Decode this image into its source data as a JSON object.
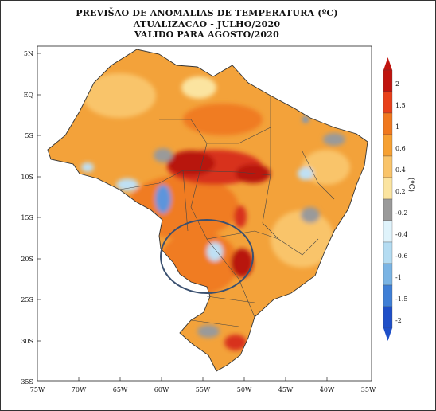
{
  "title": {
    "line1": "PREVIŠAO DE ANOMALIAS DE TEMPERATURA (ºC)",
    "line2": "ATUALIZACAO - JULHO/2020",
    "line3": "VALIDO PARA AGOSTO/2020"
  },
  "axes": {
    "lat_labels": [
      "5N",
      "EQ",
      "5S",
      "10S",
      "15S",
      "20S",
      "25S",
      "30S",
      "35S"
    ],
    "lon_labels": [
      "75W",
      "70W",
      "65W",
      "60W",
      "55W",
      "50W",
      "45W",
      "40W",
      "35W"
    ]
  },
  "colorbar": {
    "unit": "(ºC)",
    "labels": [
      "2",
      "1.5",
      "1",
      "0.6",
      "0.4",
      "0.2",
      "-0.2",
      "-0.4",
      "-0.6",
      "-1",
      "-1.5",
      "-2"
    ],
    "colors": [
      "#c0140f",
      "#e8401a",
      "#f0781e",
      "#f6a032",
      "#f9c46a",
      "#fbe4a0",
      "#9a9a9a",
      "#dff3fb",
      "#b4dcf2",
      "#7ab4e4",
      "#3f7fd6",
      "#1f4fc8"
    ]
  },
  "colors": {
    "land_base": "#f3a23a",
    "warm_mid": "#f07c22",
    "hot": "#d8301c",
    "hotter": "#b81410",
    "neutral": "#9a9a9a",
    "cool": "#bfe0f4",
    "cold": "#5d95dc",
    "highlight_ring": "#3a5070"
  }
}
